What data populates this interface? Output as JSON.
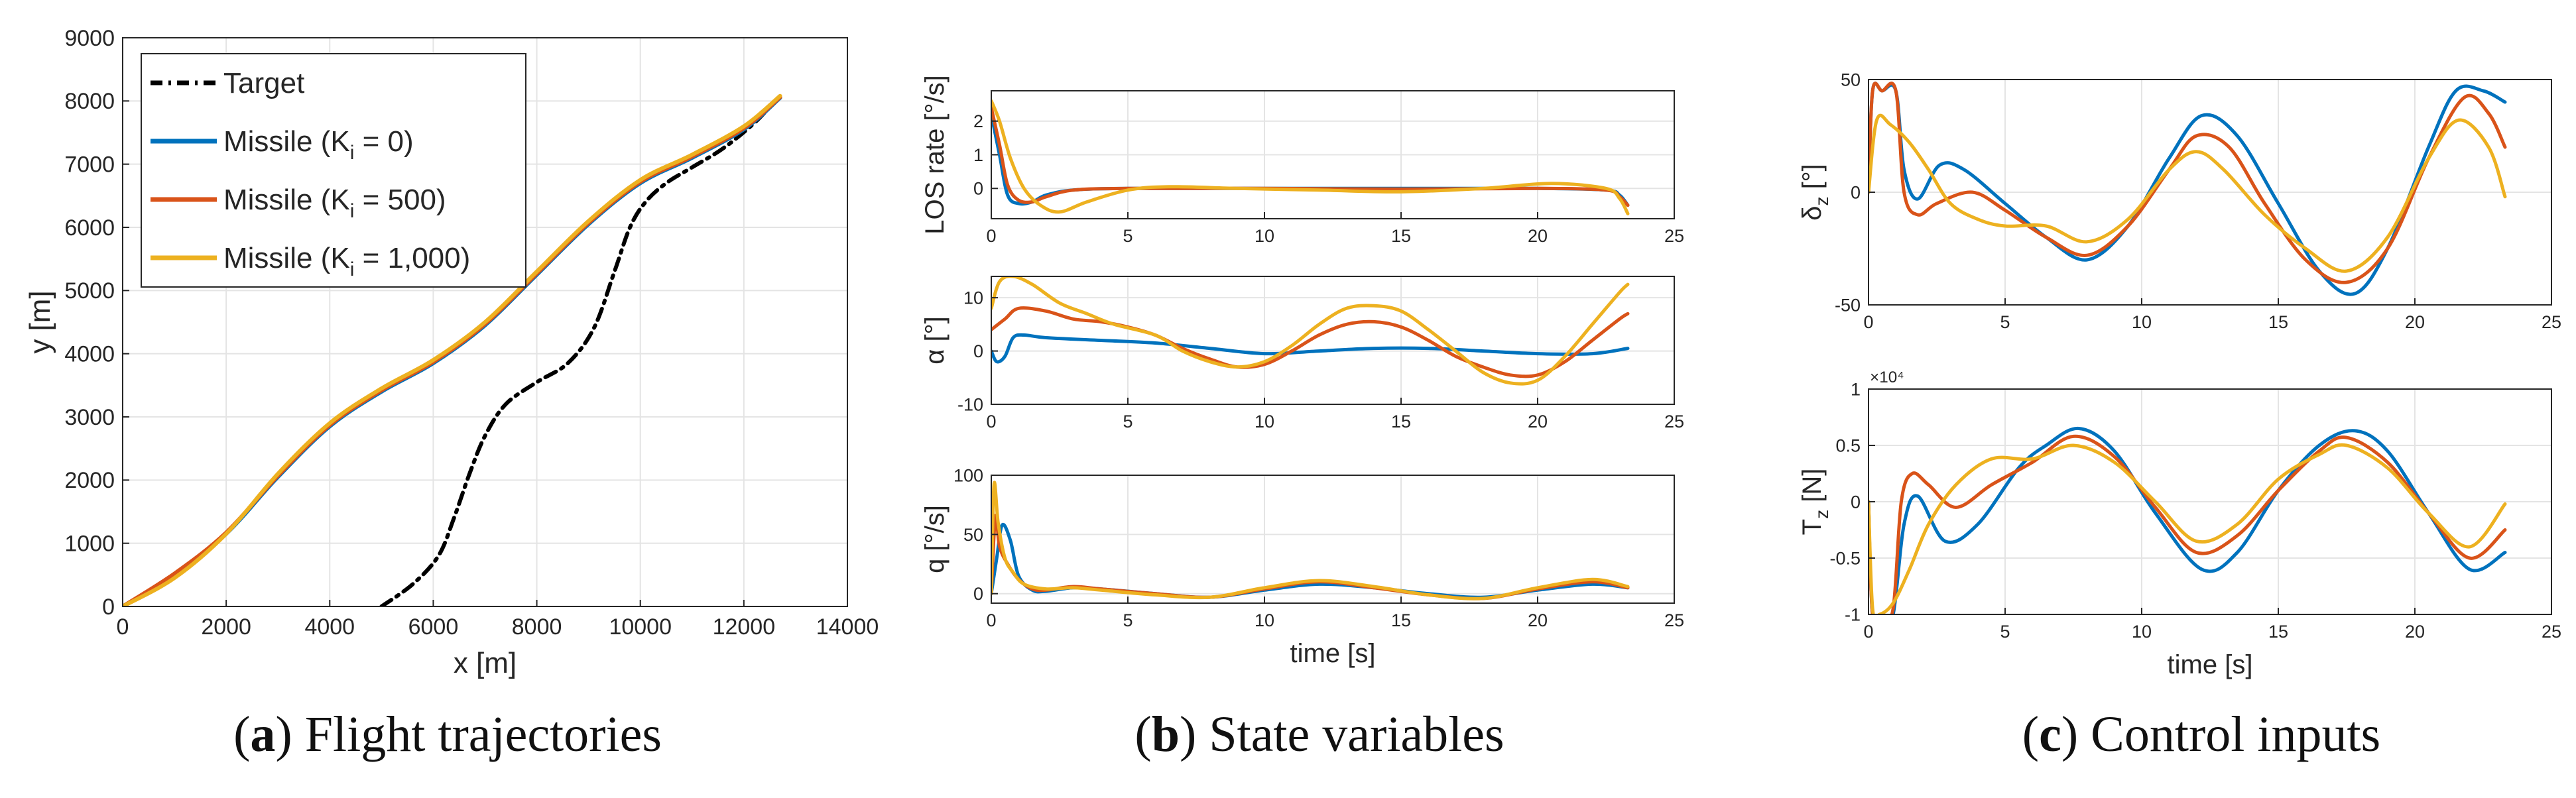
{
  "colors": {
    "target": "#000000",
    "ki0": "#0072BD",
    "ki500": "#D95319",
    "ki1000": "#EDB120",
    "grid": "#e4e4e4",
    "axis": "#262626"
  },
  "captions": [
    {
      "letter": "a",
      "text": " Flight trajectories"
    },
    {
      "letter": "b",
      "text": " State variables"
    },
    {
      "letter": "c",
      "text": " Control inputs"
    }
  ],
  "chart_data": [
    {
      "id": "trajectories",
      "type": "line",
      "xlabel": "x [m]",
      "ylabel": "y [m]",
      "xlim": [
        0,
        14000
      ],
      "ylim": [
        0,
        9000
      ],
      "xticks": [
        0,
        2000,
        4000,
        6000,
        8000,
        10000,
        12000,
        14000
      ],
      "yticks": [
        0,
        1000,
        2000,
        3000,
        4000,
        5000,
        6000,
        7000,
        8000,
        9000
      ],
      "grid": true,
      "legend_position": "top-left",
      "series": [
        {
          "name": "Target",
          "style": "dash-dot",
          "x": [
            5000,
            5600,
            6100,
            6400,
            6700,
            7000,
            7400,
            8000,
            8600,
            9100,
            9500,
            9800,
            10100,
            10500,
            11000,
            11600,
            12200,
            12600
          ],
          "y": [
            0,
            350,
            800,
            1400,
            2100,
            2700,
            3200,
            3550,
            3850,
            4400,
            5300,
            6000,
            6400,
            6700,
            6950,
            7250,
            7650,
            8000
          ]
        },
        {
          "name": "Missile (K_i = 0)",
          "x": [
            0,
            1000,
            2000,
            3000,
            4000,
            5000,
            6000,
            7000,
            8000,
            9000,
            10000,
            11000,
            12000,
            12700
          ],
          "y": [
            0,
            500,
            1150,
            2050,
            2850,
            3400,
            3850,
            4450,
            5250,
            6050,
            6700,
            7100,
            7550,
            8050
          ]
        },
        {
          "name": "Missile (K_i = 500)",
          "x": [
            0,
            1000,
            2000,
            3000,
            4000,
            5000,
            6000,
            7000,
            8000,
            9000,
            10000,
            11000,
            12000,
            12700
          ],
          "y": [
            0,
            520,
            1170,
            2070,
            2870,
            3420,
            3870,
            4470,
            5270,
            6070,
            6720,
            7120,
            7570,
            8060
          ]
        },
        {
          "name": "Missile (K_i = 1,000)",
          "x": [
            0,
            1000,
            2000,
            3000,
            4000,
            5000,
            6000,
            7000,
            8000,
            9000,
            10000,
            11000,
            12000,
            12700
          ],
          "y": [
            0,
            450,
            1150,
            2100,
            2900,
            3450,
            3900,
            4500,
            5300,
            6100,
            6750,
            7150,
            7600,
            8080
          ]
        }
      ]
    },
    {
      "id": "los-rate",
      "type": "line",
      "xlabel": "",
      "ylabel": "LOS rate [°/s]",
      "xlim": [
        0,
        25
      ],
      "ylim": [
        -0.9,
        2.9
      ],
      "xticks": [
        0,
        5,
        10,
        15,
        20,
        25
      ],
      "yticks": [
        0,
        1,
        2
      ],
      "grid": true,
      "series": [
        {
          "x": [
            0,
            0.3,
            0.6,
            1.0,
            1.5,
            2.0,
            3.0,
            5.0,
            10,
            15,
            20,
            22.5,
            23.0,
            23.3
          ],
          "y": [
            2.2,
            1.0,
            -0.2,
            -0.45,
            -0.4,
            -0.2,
            -0.05,
            0.0,
            0.0,
            0.0,
            0.0,
            -0.05,
            -0.2,
            -0.5
          ]
        },
        {
          "x": [
            0,
            0.3,
            0.6,
            1.0,
            1.5,
            2.0,
            3.0,
            5.0,
            10,
            15,
            20,
            22.5,
            23.0,
            23.3
          ],
          "y": [
            2.4,
            1.3,
            0.1,
            -0.35,
            -0.4,
            -0.25,
            -0.05,
            0.0,
            0.0,
            -0.02,
            0.0,
            -0.05,
            -0.25,
            -0.5
          ]
        },
        {
          "x": [
            0,
            0.3,
            0.7,
            1.2,
            1.8,
            2.5,
            3.5,
            5.0,
            6.5,
            9.0,
            12,
            15,
            18,
            20.5,
            22.5,
            23.0,
            23.3
          ],
          "y": [
            2.6,
            2.0,
            0.9,
            0.0,
            -0.5,
            -0.7,
            -0.4,
            -0.05,
            0.05,
            0.0,
            -0.05,
            -0.1,
            0.0,
            0.15,
            0.0,
            -0.3,
            -0.75
          ]
        }
      ]
    },
    {
      "id": "alpha",
      "type": "line",
      "xlabel": "",
      "ylabel": "α [°]",
      "xlim": [
        0,
        25
      ],
      "ylim": [
        -10,
        14
      ],
      "xticks": [
        0,
        5,
        10,
        15,
        20,
        25
      ],
      "yticks": [
        -10,
        0,
        10
      ],
      "grid": true,
      "series": [
        {
          "x": [
            0,
            0.2,
            0.5,
            0.8,
            1.2,
            2,
            4,
            6,
            8,
            10,
            12,
            14,
            16,
            18,
            20,
            22,
            23.3
          ],
          "y": [
            0,
            -2,
            -1,
            2.5,
            3,
            2.5,
            2,
            1.5,
            0.5,
            -0.5,
            0,
            0.5,
            0.5,
            0,
            -0.5,
            -0.5,
            0.5
          ]
        },
        {
          "x": [
            0,
            0.5,
            1,
            2,
            3,
            4,
            5,
            6,
            7,
            8,
            9,
            10,
            11,
            12,
            13,
            14,
            15,
            16,
            17,
            18,
            19,
            20,
            21,
            22,
            23,
            23.3
          ],
          "y": [
            4,
            6,
            8,
            7.5,
            6,
            5.5,
            4.5,
            3,
            0.5,
            -1.5,
            -3,
            -2.5,
            0,
            3,
            5,
            5.5,
            4.5,
            2,
            -1,
            -3,
            -4.5,
            -4.5,
            -2,
            2,
            6,
            7
          ]
        },
        {
          "x": [
            0,
            0.3,
            0.8,
            1.5,
            2.5,
            3.5,
            4.5,
            6,
            7,
            8,
            9,
            10,
            11,
            12,
            13,
            14,
            15,
            16,
            17,
            18,
            19,
            20,
            21,
            22,
            23,
            23.3
          ],
          "y": [
            8,
            13,
            14,
            12.5,
            9,
            7,
            5,
            3,
            0,
            -2,
            -3,
            -2,
            1,
            5,
            8,
            8.5,
            7.5,
            4,
            0,
            -4,
            -6,
            -5.5,
            -1,
            5,
            11,
            12.5
          ]
        }
      ]
    },
    {
      "id": "q",
      "type": "line",
      "xlabel": "time [s]",
      "ylabel": "q [°/s]",
      "xlim": [
        0,
        25
      ],
      "ylim": [
        -8,
        100
      ],
      "xticks": [
        0,
        5,
        10,
        15,
        20,
        25
      ],
      "yticks": [
        0,
        50,
        100
      ],
      "grid": true,
      "series": [
        {
          "x": [
            0,
            0.2,
            0.4,
            0.7,
            1.0,
            1.5,
            2,
            3,
            4,
            6,
            8,
            10,
            12,
            14,
            16,
            18,
            20,
            22,
            23.3
          ],
          "y": [
            0,
            30,
            58,
            45,
            15,
            3,
            2,
            5,
            4,
            0,
            -3,
            3,
            8,
            5,
            0,
            -3,
            3,
            8,
            5
          ]
        },
        {
          "x": [
            0,
            0.15,
            0.3,
            0.6,
            1.0,
            1.5,
            2,
            3,
            4,
            6,
            8,
            10,
            12,
            14,
            16,
            18,
            20,
            22,
            23.3
          ],
          "y": [
            0,
            65,
            40,
            25,
            12,
            4,
            3,
            6,
            4,
            0,
            -3,
            4,
            10,
            5,
            -1,
            -4,
            4,
            10,
            5
          ]
        },
        {
          "x": [
            0,
            0.1,
            0.25,
            0.5,
            0.8,
            1.2,
            2,
            3,
            4,
            6,
            8,
            10,
            12,
            14,
            16,
            18,
            20,
            22,
            23.3
          ],
          "y": [
            0,
            92,
            60,
            30,
            18,
            8,
            4,
            5,
            3,
            -1,
            -3,
            5,
            11,
            6,
            -1,
            -4,
            5,
            12,
            6
          ]
        }
      ]
    },
    {
      "id": "delta-z",
      "type": "line",
      "xlabel": "",
      "ylabel": "δ_z [°]",
      "xlim": [
        0,
        25
      ],
      "ylim": [
        -50,
        50
      ],
      "xticks": [
        0,
        5,
        10,
        15,
        20,
        25
      ],
      "yticks": [
        -50,
        0,
        50
      ],
      "grid": true,
      "series": [
        {
          "x": [
            0,
            0.15,
            0.5,
            1.0,
            1.3,
            1.8,
            2.6,
            3.5,
            5,
            6.5,
            8,
            9.5,
            11,
            12.2,
            13.5,
            15,
            16.5,
            17.8,
            19,
            20.5,
            21.5,
            22.5,
            23.3
          ],
          "y": [
            0,
            45,
            45,
            45,
            10,
            -3,
            12,
            10,
            -5,
            -20,
            -30,
            -15,
            15,
            34,
            25,
            -5,
            -35,
            -45,
            -25,
            20,
            45,
            45,
            40
          ]
        },
        {
          "x": [
            0,
            0.15,
            0.5,
            1.0,
            1.3,
            1.8,
            2.5,
            3.8,
            5,
            6.5,
            8,
            9.5,
            11,
            12,
            13.2,
            14.5,
            16,
            17.5,
            19,
            20.5,
            21.8,
            22.7,
            23.3
          ],
          "y": [
            0,
            45,
            45,
            45,
            0,
            -10,
            -5,
            0,
            -8,
            -20,
            -28,
            -15,
            10,
            25,
            20,
            -5,
            -30,
            -40,
            -25,
            15,
            42,
            35,
            20
          ]
        },
        {
          "x": [
            0,
            0.3,
            0.8,
            1.5,
            2.2,
            3,
            4,
            5,
            6.5,
            8,
            9.5,
            11,
            12,
            13,
            14.5,
            16,
            17.5,
            19,
            20.5,
            21.6,
            22.7,
            23.3
          ],
          "y": [
            0,
            32,
            30,
            22,
            10,
            -5,
            -12,
            -15,
            -15,
            -22,
            -12,
            10,
            18,
            10,
            -10,
            -25,
            -35,
            -20,
            15,
            32,
            20,
            -2
          ]
        }
      ]
    },
    {
      "id": "tz",
      "type": "line",
      "xlabel": "time [s]",
      "ylabel": "T_z [N]",
      "xlim": [
        0,
        25
      ],
      "ylim": [
        -1,
        1
      ],
      "xticks": [
        0,
        5,
        10,
        15,
        20,
        25
      ],
      "yticks": [
        -1,
        -0.5,
        0,
        0.5,
        1
      ],
      "exponent_label": "×10⁴",
      "grid": true,
      "series": [
        {
          "x": [
            0,
            0.15,
            0.5,
            0.9,
            1.3,
            1.8,
            2.8,
            4,
            5.5,
            6.5,
            7.7,
            9,
            10.5,
            12.2,
            13.5,
            15,
            16.5,
            17.8,
            19,
            20.5,
            22,
            23.3
          ],
          "y": [
            0,
            -1,
            -1,
            -1,
            -0.2,
            0.05,
            -0.35,
            -0.2,
            0.3,
            0.5,
            0.65,
            0.45,
            -0.1,
            -0.6,
            -0.45,
            0.1,
            0.5,
            0.63,
            0.45,
            -0.1,
            -0.6,
            -0.45
          ]
        },
        {
          "x": [
            0,
            0.15,
            0.5,
            0.9,
            1.2,
            1.6,
            2.2,
            3.2,
            4.5,
            6,
            7.5,
            9,
            10.5,
            12,
            13.5,
            15,
            16.5,
            17.5,
            19,
            20.5,
            22,
            23.3
          ],
          "y": [
            0,
            -1,
            -1,
            -0.95,
            0.0,
            0.25,
            0.15,
            -0.05,
            0.15,
            0.35,
            0.58,
            0.4,
            -0.05,
            -0.45,
            -0.3,
            0.1,
            0.45,
            0.57,
            0.35,
            -0.1,
            -0.5,
            -0.25
          ]
        },
        {
          "x": [
            0,
            0.15,
            0.4,
            0.9,
            1.5,
            2.2,
            3.2,
            4.5,
            6,
            7.5,
            9,
            10.5,
            12,
            13.5,
            15,
            16.5,
            17.5,
            19,
            20.5,
            22,
            23.3
          ],
          "y": [
            0,
            -0.95,
            -1,
            -0.9,
            -0.6,
            -0.2,
            0.15,
            0.38,
            0.38,
            0.5,
            0.35,
            0.0,
            -0.35,
            -0.2,
            0.2,
            0.42,
            0.5,
            0.3,
            -0.1,
            -0.4,
            -0.02
          ]
        }
      ]
    }
  ]
}
